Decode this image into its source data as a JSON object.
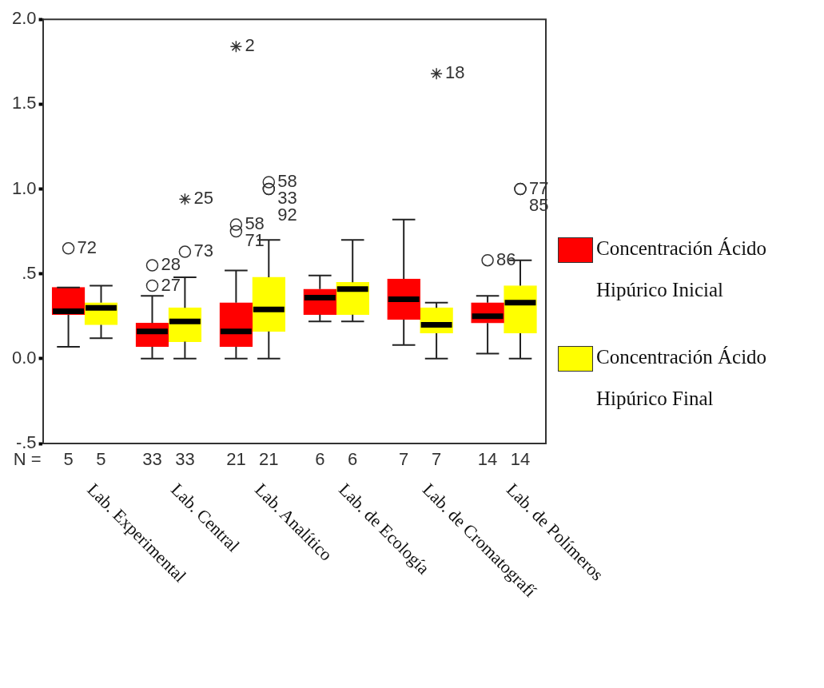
{
  "chart_data": {
    "type": "box",
    "categories": [
      "Lab. Experimental",
      "Lab. Central",
      "Lab. Analítico",
      "Lab. de Ecología",
      "Lab. de Cromatografí",
      "Lab. de Polímeros"
    ],
    "ylim": [
      -0.5,
      2.0
    ],
    "yticks": [
      {
        "value": -0.5,
        "label": "-.5"
      },
      {
        "value": 0,
        "label": "0.0"
      },
      {
        "value": 0.5,
        "label": ".5"
      },
      {
        "value": 1,
        "label": "1.0"
      },
      {
        "value": 1.5,
        "label": "1.5"
      },
      {
        "value": 2,
        "label": "2.0"
      }
    ],
    "legend": "right",
    "series": [
      {
        "name": "Concentración Ácido Hipúrico Inicial",
        "color": "#ff0000",
        "value_labels": [
          "5",
          "33",
          "21",
          "6",
          "7",
          "14"
        ],
        "boxes": [
          {
            "low": 0.07,
            "q1": 0.26,
            "median": 0.28,
            "q3": 0.42,
            "high": 0.42,
            "outliers": [
              0.65
            ]
          },
          {
            "low": 0,
            "q1": 0.07,
            "median": 0.16,
            "q3": 0.21,
            "high": 0.37,
            "outliers": [
              0.55,
              0.43
            ]
          },
          {
            "low": 0,
            "q1": 0.07,
            "median": 0.16,
            "q3": 0.33,
            "high": 0.52,
            "outliers": [
              1.84,
              0.79,
              0.75
            ]
          },
          {
            "low": 0.22,
            "q1": 0.26,
            "median": 0.36,
            "q3": 0.41,
            "high": 0.49
          },
          {
            "low": 0.08,
            "q1": 0.23,
            "median": 0.35,
            "q3": 0.47,
            "high": 0.82
          },
          {
            "low": 0.03,
            "q1": 0.21,
            "median": 0.25,
            "q3": 0.33,
            "high": 0.37,
            "outliers": [
              0.58
            ]
          }
        ]
      },
      {
        "name": "Concentración Ácido Hipúrico Final",
        "color": "#ffff00",
        "value_labels": [
          "5",
          "33",
          "21",
          "6",
          "7",
          "14"
        ],
        "boxes": [
          {
            "low": 0.12,
            "q1": 0.2,
            "median": 0.3,
            "q3": 0.33,
            "high": 0.43
          },
          {
            "low": 0,
            "q1": 0.1,
            "median": 0.22,
            "q3": 0.3,
            "high": 0.48,
            "outliers": [
              0.94,
              0.63
            ]
          },
          {
            "low": 0,
            "q1": 0.16,
            "median": 0.29,
            "q3": 0.48,
            "high": 0.7,
            "outliers": [
              1.04,
              1.0,
              1.0
            ]
          },
          {
            "low": 0.22,
            "q1": 0.26,
            "median": 0.41,
            "q3": 0.45,
            "high": 0.7
          },
          {
            "low": 0,
            "q1": 0.15,
            "median": 0.2,
            "q3": 0.3,
            "high": 0.33,
            "outliers": [
              1.68
            ]
          },
          {
            "low": 0,
            "q1": 0.15,
            "median": 0.33,
            "q3": 0.43,
            "high": 0.58,
            "outliers": [
              1.0,
              1.0
            ]
          }
        ]
      }
    ],
    "annotations": [
      "N =",
      "72",
      "28",
      "27",
      "2",
      "58",
      "71",
      "86",
      "25",
      "73",
      "58",
      "33",
      "92",
      "18",
      "77",
      "85"
    ]
  }
}
